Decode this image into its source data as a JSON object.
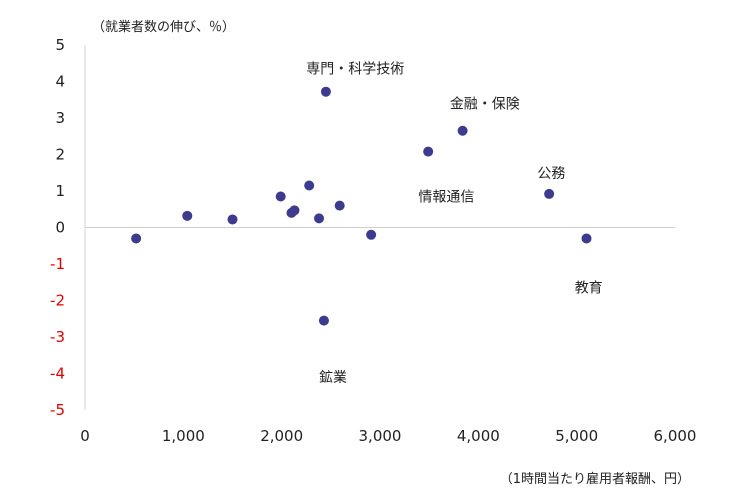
{
  "chart_data": {
    "type": "scatter",
    "ylabel": "（就業者数の伸び、％）",
    "xlabel": "（1時間当たり雇用者報酬、円）",
    "xlim": [
      0,
      6000
    ],
    "ylim": [
      -5,
      5
    ],
    "x_ticks": [
      "0",
      "1,000",
      "2,000",
      "3,000",
      "4,000",
      "5,000",
      "6,000"
    ],
    "y_ticks": [
      "5",
      "4",
      "3",
      "2",
      "1",
      "0",
      "-1",
      "-2",
      "-3",
      "-4",
      "-5"
    ],
    "negative_tick_color": "#e00000",
    "point_color": "#3d3b8e",
    "grid": false,
    "points": [
      {
        "x": 520,
        "y": -0.3
      },
      {
        "x": 1040,
        "y": 0.32
      },
      {
        "x": 1500,
        "y": 0.22
      },
      {
        "x": 1990,
        "y": 0.85
      },
      {
        "x": 2100,
        "y": 0.4
      },
      {
        "x": 2130,
        "y": 0.47
      },
      {
        "x": 2280,
        "y": 1.15
      },
      {
        "x": 2380,
        "y": 0.25
      },
      {
        "x": 2450,
        "y": 3.72
      },
      {
        "x": 2430,
        "y": -2.55
      },
      {
        "x": 2590,
        "y": 0.6
      },
      {
        "x": 2910,
        "y": -0.2
      },
      {
        "x": 3490,
        "y": 2.08
      },
      {
        "x": 3840,
        "y": 2.65
      },
      {
        "x": 4720,
        "y": 0.92
      },
      {
        "x": 5100,
        "y": -0.3
      }
    ],
    "annotations": [
      {
        "text": "専門・科学技術",
        "x": 2250,
        "y": 4.35
      },
      {
        "text": "金融・保険",
        "x": 3710,
        "y": 3.4
      },
      {
        "text": "情報通信",
        "x": 3390,
        "y": 0.85
      },
      {
        "text": "公務",
        "x": 4600,
        "y": 1.5
      },
      {
        "text": "教育",
        "x": 4980,
        "y": -1.65
      },
      {
        "text": "鉱業",
        "x": 2380,
        "y": -4.1
      }
    ]
  }
}
